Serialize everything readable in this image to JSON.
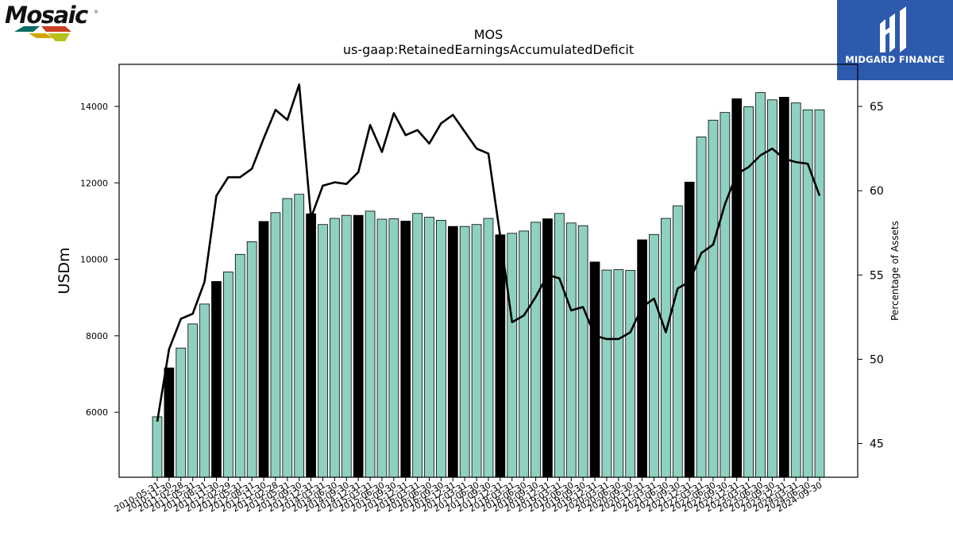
{
  "logo": {
    "brand": "Mosaic",
    "registered": "®"
  },
  "watermark": {
    "text": "MIDGARD FINANCE"
  },
  "colors": {
    "bar_default": "#8ed1c1",
    "bar_highlight": "#000000",
    "line": "#000000",
    "watermark_bg": "#2d5aad"
  },
  "chart_data": {
    "type": "bar",
    "title": "MOS",
    "subtitle": "us-gaap:RetainedEarningsAccumulatedDeficit",
    "ylabel": "USDm",
    "y2label": "Percentage of Assets",
    "ylim": [
      4300,
      15100
    ],
    "y2lim": [
      43,
      67.5
    ],
    "yticks": [
      6000,
      8000,
      10000,
      12000,
      14000
    ],
    "y2ticks": [
      45,
      50,
      55,
      60,
      65
    ],
    "grid": false,
    "categories": [
      "2010-05-31",
      "2010-11-30",
      "2011-02-28",
      "2011-05-31",
      "2011-08-31",
      "2011-11-30",
      "2012-02-29",
      "2012-05-31",
      "2012-08-31",
      "2012-11-30",
      "2013-02-28",
      "2013-05-31",
      "2013-09-30",
      "2013-12-31",
      "2014-03-31",
      "2014-06-30",
      "2014-09-30",
      "2014-12-31",
      "2015-03-31",
      "2015-06-30",
      "2015-09-30",
      "2015-12-31",
      "2016-03-31",
      "2016-06-30",
      "2016-09-30",
      "2016-12-31",
      "2017-03-31",
      "2017-06-30",
      "2017-09-30",
      "2017-12-31",
      "2018-03-31",
      "2018-06-30",
      "2018-09-30",
      "2018-12-31",
      "2019-03-31",
      "2019-06-30",
      "2019-09-30",
      "2019-12-31",
      "2020-03-31",
      "2020-06-30",
      "2020-09-30",
      "2020-12-31",
      "2021-03-31",
      "2021-06-30",
      "2021-09-30",
      "2021-12-31",
      "2022-03-31",
      "2022-06-30",
      "2022-09-30",
      "2022-12-31",
      "2023-03-31",
      "2023-06-30",
      "2023-09-30",
      "2023-12-31",
      "2024-03-31",
      "2024-06-30",
      "2024-09-30"
    ],
    "series": [
      {
        "type": "bar",
        "values": [
          5880,
          7160,
          7680,
          8310,
          8830,
          9420,
          9670,
          10130,
          10460,
          10990,
          11220,
          11590,
          11700,
          11190,
          10910,
          11070,
          11150,
          11150,
          11260,
          11050,
          11060,
          11000,
          11200,
          11100,
          11020,
          10860,
          10860,
          10910,
          11070,
          10640,
          10680,
          10740,
          10970,
          11060,
          11200,
          10950,
          10880,
          9930,
          9720,
          9730,
          9710,
          10510,
          10650,
          11070,
          11400,
          12020,
          13200,
          13640,
          13840,
          14200,
          13990,
          14360,
          14170,
          14240,
          14090,
          13910,
          13910
        ],
        "highlight": [
          false,
          true,
          false,
          false,
          false,
          true,
          false,
          false,
          false,
          true,
          false,
          false,
          false,
          true,
          false,
          false,
          false,
          true,
          false,
          false,
          false,
          true,
          false,
          false,
          false,
          true,
          false,
          false,
          false,
          true,
          false,
          false,
          false,
          true,
          false,
          false,
          false,
          true,
          false,
          false,
          false,
          true,
          false,
          false,
          false,
          true,
          false,
          false,
          false,
          true,
          false,
          false,
          false,
          true,
          false,
          false,
          false
        ]
      },
      {
        "type": "line",
        "axis": "right",
        "values": [
          46.3,
          50.6,
          52.4,
          52.7,
          54.6,
          59.7,
          60.8,
          60.8,
          61.3,
          63.1,
          64.8,
          64.2,
          66.3,
          58.4,
          60.3,
          60.5,
          60.4,
          61.1,
          63.9,
          62.3,
          64.6,
          63.3,
          63.6,
          62.8,
          64.0,
          64.5,
          63.5,
          62.5,
          62.2,
          57.3,
          52.2,
          52.6,
          53.7,
          55.0,
          54.8,
          52.9,
          53.1,
          51.4,
          51.2,
          51.2,
          51.6,
          53.1,
          53.6,
          51.6,
          54.2,
          54.6,
          56.3,
          56.8,
          59.2,
          61.0,
          61.4,
          62.1,
          62.5,
          61.9,
          61.7,
          61.6,
          59.7
        ]
      }
    ]
  }
}
